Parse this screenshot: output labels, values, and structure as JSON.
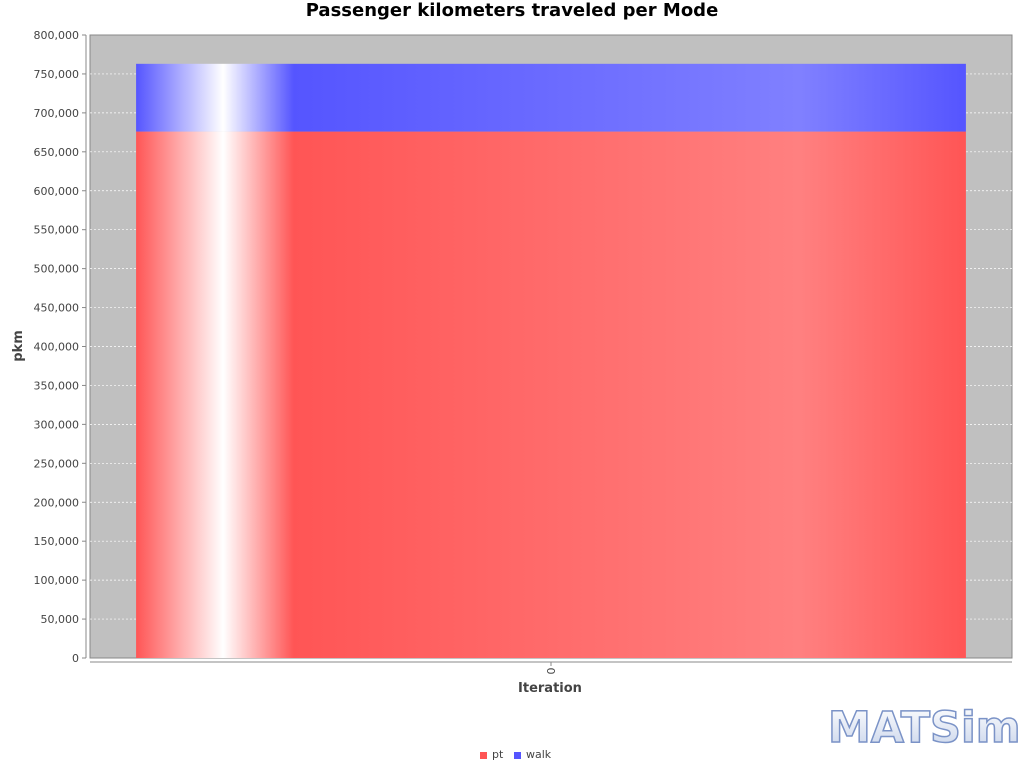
{
  "chart_data": {
    "type": "bar",
    "stacked": true,
    "title": "Passenger kilometers traveled per Mode",
    "xlabel": "Iteration",
    "ylabel": "pkm",
    "categories": [
      "0"
    ],
    "series": [
      {
        "name": "pt",
        "values": [
          676000
        ],
        "color": "#ff5555"
      },
      {
        "name": "walk",
        "values": [
          87000
        ],
        "color": "#5555ff"
      }
    ],
    "ylim": [
      0,
      800000
    ],
    "yticks": [
      0,
      50000,
      100000,
      150000,
      200000,
      250000,
      300000,
      350000,
      400000,
      450000,
      500000,
      550000,
      600000,
      650000,
      700000,
      750000,
      800000
    ],
    "ytick_labels": [
      "0",
      "50,000",
      "100,000",
      "150,000",
      "200,000",
      "250,000",
      "300,000",
      "350,000",
      "400,000",
      "450,000",
      "500,000",
      "550,000",
      "600,000",
      "650,000",
      "700,000",
      "750,000",
      "800,000"
    ],
    "grid": true,
    "legend_position": "bottom-center",
    "plot_background": "#c0c0c0"
  },
  "logo": {
    "text": "MATSim"
  }
}
